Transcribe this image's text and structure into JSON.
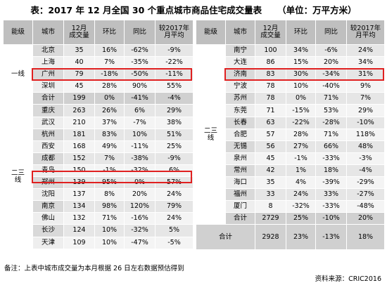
{
  "title": "表：2017 年 12 月全国 30 个重点城市商品住宅成交量表",
  "unit": "（单位：万平方米）",
  "headers": [
    "能级",
    "城市",
    "12月成交量",
    "环比",
    "同比",
    "较2017年月平均"
  ],
  "left_table": {
    "tiers": [
      "一线",
      "二三线"
    ],
    "tier1_rows": [
      [
        "北京",
        "35",
        "16%",
        "-62%",
        "-9%"
      ],
      [
        "上海",
        "40",
        "7%",
        "-35%",
        "-22%"
      ],
      [
        "广州",
        "79",
        "-18%",
        "-50%",
        "-11%"
      ],
      [
        "深圳",
        "45",
        "28%",
        "90%",
        "55%"
      ]
    ],
    "tier1_sum": [
      "合计",
      "199",
      "0%",
      "-41%",
      "-4%"
    ],
    "tier23_rows": [
      [
        "重庆",
        "263",
        "26%",
        "6%",
        "29%"
      ],
      [
        "武汉",
        "210",
        "37%",
        "-7%",
        "38%"
      ],
      [
        "杭州",
        "181",
        "83%",
        "10%",
        "51%"
      ],
      [
        "西安",
        "168",
        "49%",
        "-11%",
        "25%"
      ],
      [
        "成都",
        "152",
        "7%",
        "-38%",
        "-9%"
      ],
      [
        "青岛",
        "150",
        "-1%",
        "-32%",
        "6%"
      ],
      [
        "郑州",
        "139",
        "95%",
        "0%",
        "57%"
      ],
      [
        "沈阳",
        "137",
        "8%",
        "20%",
        "24%"
      ],
      [
        "南京",
        "134",
        "98%",
        "120%",
        "79%"
      ],
      [
        "佛山",
        "132",
        "71%",
        "-16%",
        "24%"
      ],
      [
        "长沙",
        "124",
        "10%",
        "-32%",
        "5%"
      ],
      [
        "天津",
        "109",
        "10%",
        "-47%",
        "-5%"
      ]
    ]
  },
  "right_table": {
    "tier": "二三线",
    "rows": [
      [
        "南宁",
        "100",
        "34%",
        "-6%",
        "24%"
      ],
      [
        "大连",
        "86",
        "15%",
        "20%",
        "34%"
      ],
      [
        "济南",
        "83",
        "30%",
        "-34%",
        "31%"
      ],
      [
        "宁波",
        "78",
        "10%",
        "-40%",
        "9%"
      ],
      [
        "苏州",
        "78",
        "0%",
        "71%",
        "7%"
      ],
      [
        "东莞",
        "71",
        "-15%",
        "53%",
        "29%"
      ],
      [
        "长春",
        "63",
        "-22%",
        "-28%",
        "-10%"
      ],
      [
        "合肥",
        "57",
        "28%",
        "71%",
        "118%"
      ],
      [
        "无锡",
        "56",
        "27%",
        "66%",
        "48%"
      ],
      [
        "泉州",
        "45",
        "-1%",
        "-33%",
        "-3%"
      ],
      [
        "常州",
        "42",
        "1%",
        "18%",
        "-4%"
      ],
      [
        "海口",
        "35",
        "4%",
        "-39%",
        "-29%"
      ],
      [
        "福州",
        "33",
        "24%",
        "33%",
        "-27%"
      ],
      [
        "厦门",
        "8",
        "-32%",
        "-33%",
        "-48%"
      ]
    ],
    "sub_total": [
      "合计",
      "2729",
      "25%",
      "-10%",
      "20%"
    ],
    "grand_total": [
      "合计",
      "2928",
      "23%",
      "-13%",
      "18%"
    ]
  },
  "note": "备注：上表中城市成交量为本月根据 26 日左右数据预估得到",
  "source": "资料来源：CRIC2016",
  "highlight_color": "#e02020"
}
